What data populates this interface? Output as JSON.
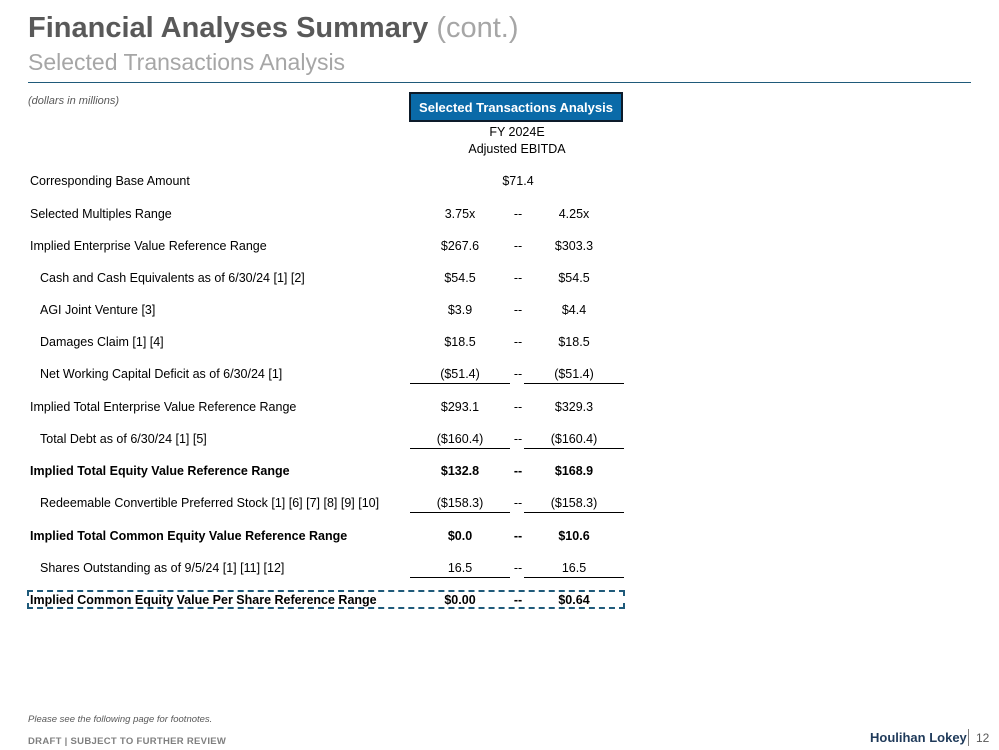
{
  "header": {
    "title_main": "Financial Analyses Summary",
    "title_cont": "(cont.)",
    "subtitle": "Selected Transactions Analysis",
    "units_note": "(dollars in millions)"
  },
  "table": {
    "header_box": "Selected Transactions Analysis",
    "column_header_line1": "FY 2024E",
    "column_header_line2": "Adjusted EBITDA",
    "rows": [
      {
        "label": "Corresponding Base Amount",
        "value": "$71.4"
      },
      {
        "label": "Selected Multiples Range",
        "low": "3.75x",
        "dash": "--",
        "high": "4.25x"
      },
      {
        "label": "Implied Enterprise Value Reference Range",
        "low": "$267.6",
        "dash": "--",
        "high": "$303.3"
      },
      {
        "label": "Cash and Cash Equivalents as of 6/30/24 [1] [2]",
        "low": "$54.5",
        "dash": "--",
        "high": "$54.5"
      },
      {
        "label": "AGI Joint Venture [3]",
        "low": "$3.9",
        "dash": "--",
        "high": "$4.4"
      },
      {
        "label": "Damages Claim [1] [4]",
        "low": "$18.5",
        "dash": "--",
        "high": "$18.5"
      },
      {
        "label": "Net Working Capital Deficit as of 6/30/24 [1]",
        "low": "($51.4)",
        "dash": "--",
        "high": "($51.4)"
      },
      {
        "label": "Implied Total Enterprise Value Reference Range",
        "low": "$293.1",
        "dash": "--",
        "high": "$329.3"
      },
      {
        "label": "Total Debt as of 6/30/24 [1] [5]",
        "low": "($160.4)",
        "dash": "--",
        "high": "($160.4)"
      },
      {
        "label": "Implied Total Equity Value Reference Range",
        "low": "$132.8",
        "dash": "--",
        "high": "$168.9"
      },
      {
        "label": "Redeemable Convertible Preferred Stock [1] [6] [7] [8] [9] [10]",
        "low": "($158.3)",
        "dash": "--",
        "high": "($158.3)"
      },
      {
        "label": "Implied Total Common Equity Value Reference Range",
        "low": "$0.0",
        "dash": "--",
        "high": "$10.6"
      },
      {
        "label": "Shares Outstanding as of 9/5/24 [1] [11] [12]",
        "low": "16.5",
        "dash": "--",
        "high": "16.5"
      },
      {
        "label": "Implied Common Equity Value Per Share Reference Range",
        "low": "$0.00",
        "dash": "--",
        "high": "$0.64"
      }
    ]
  },
  "footer": {
    "footnote": "Please see the following page for footnotes.",
    "draft": "DRAFT | SUBJECT TO FURTHER REVIEW",
    "brand": "Houlihan Lokey",
    "page": "12"
  },
  "colors": {
    "header_box_bg": "#0A6AA8",
    "rule": "#1F5A7A",
    "title_gray": "#595959",
    "subtitle_gray": "#A6A6A6"
  }
}
